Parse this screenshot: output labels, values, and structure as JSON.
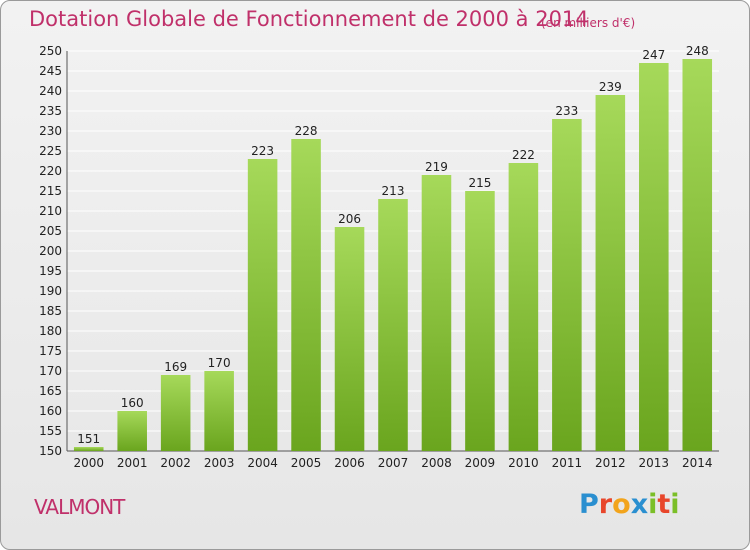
{
  "chart_data": {
    "type": "bar",
    "title": "Dotation Globale de Fonctionnement de 2000 à 2014",
    "subtitle": "(en milliers d'€)",
    "categories": [
      "2000",
      "2001",
      "2002",
      "2003",
      "2004",
      "2005",
      "2006",
      "2007",
      "2008",
      "2009",
      "2010",
      "2011",
      "2012",
      "2013",
      "2014"
    ],
    "values": [
      151,
      160,
      169,
      170,
      223,
      228,
      206,
      213,
      219,
      215,
      222,
      233,
      239,
      247,
      248
    ],
    "ylim": [
      150,
      250
    ],
    "ytick_step": 5,
    "grid": true,
    "legend": "none",
    "colors": {
      "bar_light": "#a6d95a",
      "bar_dark": "#6aa51e",
      "grid": "#ffffff"
    }
  },
  "footer": {
    "town": "VALMONT",
    "logo": {
      "letters": [
        "P",
        "r",
        "o",
        "x",
        "i",
        "t",
        "i"
      ],
      "colors": [
        "#2a8fd0",
        "#e8462b",
        "#f2a41c",
        "#2a8fd0",
        "#7bbf28",
        "#e8462b",
        "#7bbf28"
      ]
    }
  }
}
